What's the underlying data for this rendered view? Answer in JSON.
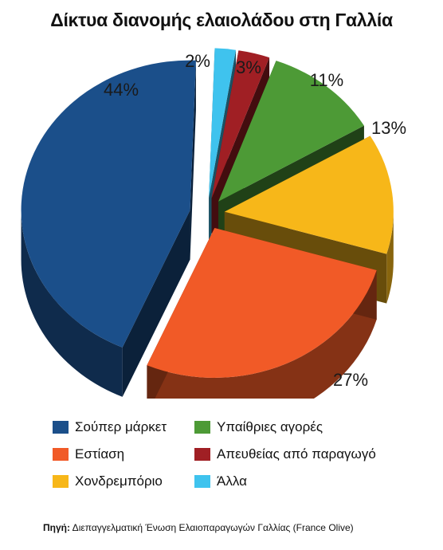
{
  "title": "Δίκτυα διανομής ελαιολάδου στη Γαλλία",
  "source_label": "Πηγή:",
  "source_text": "Διεπαγγελματική Ένωση Ελαιοπαραγωγών Γαλλίας (France Olive)",
  "chart_data": {
    "type": "pie",
    "title": "Δίκτυα διανομής ελαιολάδου στη Γαλλία",
    "legend_placement": "bottom",
    "slices": [
      {
        "name": "Σούπερ μάρκετ",
        "value": 44,
        "label": "44%",
        "color": "#1b4f8a"
      },
      {
        "name": "Άλλα",
        "value": 2,
        "label": "2%",
        "color": "#3fc3ee"
      },
      {
        "name": "Απευθείας από παραγωγό",
        "value": 3,
        "label": "3%",
        "color": "#a01f24"
      },
      {
        "name": "Υπαίθριες αγορές",
        "value": 11,
        "label": "11%",
        "color": "#4d9a36"
      },
      {
        "name": "Χονδρεμπόριο",
        "value": 13,
        "label": "13%",
        "color": "#f7b719"
      },
      {
        "name": "Εστίαση",
        "value": 27,
        "label": "27%",
        "color": "#f15a27"
      }
    ]
  },
  "legend": [
    {
      "label": "Σούπερ μάρκετ",
      "color": "#1b4f8a"
    },
    {
      "label": "Υπαίθριες αγορές",
      "color": "#4d9a36"
    },
    {
      "label": "Εστίαση",
      "color": "#f15a27"
    },
    {
      "label": "Απευθείας από παραγωγό",
      "color": "#a01f24"
    },
    {
      "label": "Χονδρεμπόριο",
      "color": "#f7b719"
    },
    {
      "label": "Άλλα",
      "color": "#3fc3ee"
    }
  ]
}
